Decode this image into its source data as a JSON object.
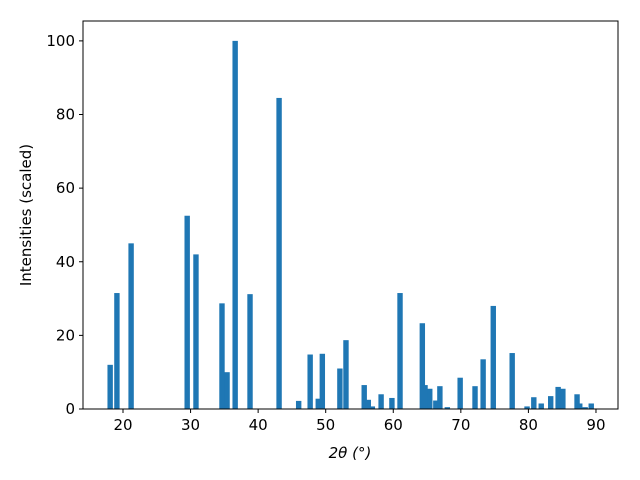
{
  "chart_data": {
    "type": "bar",
    "x": [
      18.1,
      19.1,
      21.2,
      29.5,
      30.8,
      34.65,
      35.4,
      36.6,
      38.8,
      43.1,
      46.0,
      47.7,
      48.9,
      49.5,
      52.1,
      53.0,
      55.7,
      56.3,
      56.9,
      58.2,
      59.8,
      61.0,
      64.3,
      64.7,
      65.4,
      66.3,
      66.9,
      68.0,
      69.9,
      72.1,
      73.3,
      74.8,
      77.6,
      79.8,
      80.8,
      81.9,
      83.3,
      84.4,
      85.1,
      87.2,
      87.6,
      88.4,
      89.3
    ],
    "values": [
      12,
      31.5,
      45,
      52.5,
      42,
      28.7,
      10,
      100,
      31.2,
      84.5,
      2.2,
      14.8,
      2.8,
      15,
      11,
      18.7,
      6.5,
      2.5,
      0.7,
      4,
      3,
      31.5,
      23.3,
      6.5,
      5.5,
      2.3,
      6.2,
      0.5,
      8.5,
      6.2,
      13.5,
      28,
      15.2,
      0.7,
      3.2,
      1.5,
      3.5,
      6,
      5.5,
      4,
      1.5,
      0.5,
      1.5
    ],
    "color": "#1f77b4",
    "xlabel": "2θ (°)",
    "ylabel": "Intensities (scaled)",
    "xlim": [
      14.08,
      93.26
    ],
    "xticks": [
      20,
      30,
      40,
      50,
      60,
      70,
      80,
      90
    ],
    "ylim": [
      0,
      105.4
    ],
    "yticks": [
      0,
      20,
      40,
      60,
      80,
      100
    ]
  }
}
